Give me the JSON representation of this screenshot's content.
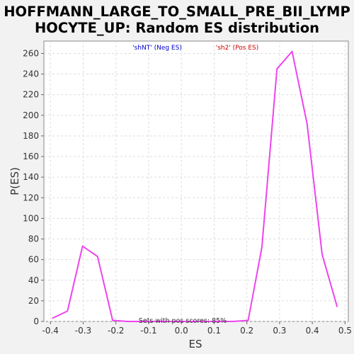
{
  "chart_data": {
    "type": "line",
    "title_lines": [
      "HOFFMANN_LARGE_TO_SMALL_PRE_BII_LYMP",
      "HOCYTE_UP: Random ES distribution"
    ],
    "xlabel": "ES",
    "ylabel": "P(ES)",
    "xlim": [
      -0.42,
      0.51
    ],
    "ylim": [
      0,
      272
    ],
    "x_ticks": [
      -0.4,
      -0.3,
      -0.2,
      -0.1,
      0.0,
      0.1,
      0.2,
      0.3,
      0.4,
      0.5
    ],
    "x_tick_labels": [
      "-0.4",
      "-0.3",
      "-0.2",
      "-0.1",
      "0.0",
      "0.1",
      "0.2",
      "0.3",
      "0.4",
      "0.5"
    ],
    "y_ticks": [
      0,
      20,
      40,
      60,
      80,
      100,
      120,
      140,
      160,
      180,
      200,
      220,
      240,
      260
    ],
    "y_tick_labels": [
      "0",
      "20",
      "40",
      "60",
      "80",
      "100",
      "120",
      "140",
      "160",
      "180",
      "200",
      "220",
      "240",
      "260"
    ],
    "grid": true,
    "legend": [
      {
        "label": "'shNT' (Neg ES)",
        "color": "#0000cc"
      },
      {
        "label": "'sh2' (Pos ES)",
        "color": "#cc0000"
      }
    ],
    "annotation": "Sets with pos scores: 85%",
    "series": [
      {
        "color": "#ee44ee",
        "x": [
          -0.395,
          -0.348,
          -0.302,
          -0.256,
          -0.21,
          -0.164,
          -0.118,
          -0.072,
          -0.026,
          0.02,
          0.066,
          0.112,
          0.158,
          0.204,
          0.246,
          0.292,
          0.338,
          0.384,
          0.43,
          0.476
        ],
        "y": [
          3,
          10,
          73,
          63,
          1,
          0,
          0,
          0,
          0,
          0,
          0,
          0,
          0,
          1,
          72,
          245,
          262,
          192,
          65,
          14
        ]
      }
    ]
  }
}
